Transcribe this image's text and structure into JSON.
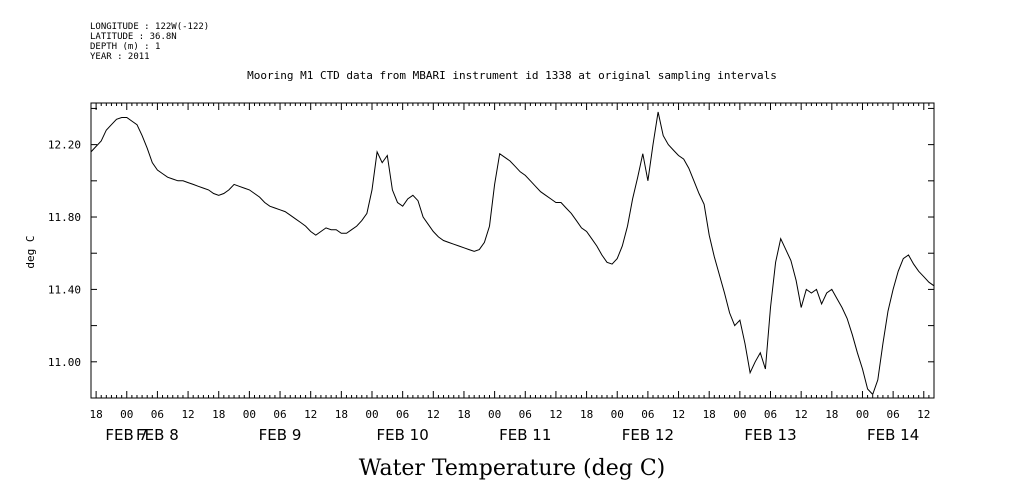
{
  "meta": {
    "longitude": "LONGITUDE : 122W(-122)",
    "latitude": "LATITUDE : 36.8N",
    "depth": "DEPTH (m) : 1",
    "year": "YEAR : 2011"
  },
  "chart_data": {
    "type": "line",
    "title": "Mooring M1 CTD data from MBARI instrument id 1338 at original sampling intervals",
    "xlabel": "Water Temperature (deg C)",
    "ylabel": "deg C",
    "ylim": [
      10.8,
      12.43
    ],
    "yticks": [
      11.0,
      11.4,
      11.8,
      12.2
    ],
    "ytick_labels": [
      "11.00",
      "11.40",
      "11.80",
      "12.20"
    ],
    "xlim_hours": [
      -7,
      158
    ],
    "hour_ticks": [
      {
        "h": -6,
        "label": "18"
      },
      {
        "h": 0,
        "label": "00"
      },
      {
        "h": 6,
        "label": "06"
      },
      {
        "h": 12,
        "label": "12"
      },
      {
        "h": 18,
        "label": "18"
      },
      {
        "h": 24,
        "label": "00"
      },
      {
        "h": 30,
        "label": "06"
      },
      {
        "h": 36,
        "label": "12"
      },
      {
        "h": 42,
        "label": "18"
      },
      {
        "h": 48,
        "label": "00"
      },
      {
        "h": 54,
        "label": "06"
      },
      {
        "h": 60,
        "label": "12"
      },
      {
        "h": 66,
        "label": "18"
      },
      {
        "h": 72,
        "label": "00"
      },
      {
        "h": 78,
        "label": "06"
      },
      {
        "h": 84,
        "label": "12"
      },
      {
        "h": 90,
        "label": "18"
      },
      {
        "h": 96,
        "label": "00"
      },
      {
        "h": 102,
        "label": "06"
      },
      {
        "h": 108,
        "label": "12"
      },
      {
        "h": 114,
        "label": "18"
      },
      {
        "h": 120,
        "label": "00"
      },
      {
        "h": 126,
        "label": "06"
      },
      {
        "h": 132,
        "label": "12"
      },
      {
        "h": 138,
        "label": "18"
      },
      {
        "h": 144,
        "label": "00"
      },
      {
        "h": 150,
        "label": "06"
      },
      {
        "h": 156,
        "label": "12"
      }
    ],
    "date_labels": [
      {
        "h": 0,
        "label": "FEB  7"
      },
      {
        "h": 6,
        "label": "FEB  8"
      },
      {
        "h": 30,
        "label": "FEB  9"
      },
      {
        "h": 54,
        "label": "FEB 10"
      },
      {
        "h": 78,
        "label": "FEB 11"
      },
      {
        "h": 102,
        "label": "FEB 12"
      },
      {
        "h": 126,
        "label": "FEB 13"
      },
      {
        "h": 150,
        "label": "FEB 14"
      }
    ],
    "series": [
      {
        "color": "#000000",
        "points": [
          [
            -7,
            12.16
          ],
          [
            -6,
            12.19
          ],
          [
            -5,
            12.22
          ],
          [
            -4,
            12.28
          ],
          [
            -3,
            12.31
          ],
          [
            -2,
            12.34
          ],
          [
            -1,
            12.35
          ],
          [
            0,
            12.35
          ],
          [
            1,
            12.33
          ],
          [
            2,
            12.31
          ],
          [
            3,
            12.25
          ],
          [
            4,
            12.18
          ],
          [
            5,
            12.1
          ],
          [
            6,
            12.06
          ],
          [
            7,
            12.04
          ],
          [
            8,
            12.02
          ],
          [
            9,
            12.01
          ],
          [
            10,
            12.0
          ],
          [
            11,
            12.0
          ],
          [
            12,
            11.99
          ],
          [
            13,
            11.98
          ],
          [
            14,
            11.97
          ],
          [
            15,
            11.96
          ],
          [
            16,
            11.95
          ],
          [
            17,
            11.93
          ],
          [
            18,
            11.92
          ],
          [
            19,
            11.93
          ],
          [
            20,
            11.95
          ],
          [
            21,
            11.98
          ],
          [
            22,
            11.97
          ],
          [
            23,
            11.96
          ],
          [
            24,
            11.95
          ],
          [
            25,
            11.93
          ],
          [
            26,
            11.91
          ],
          [
            27,
            11.88
          ],
          [
            28,
            11.86
          ],
          [
            29,
            11.85
          ],
          [
            30,
            11.84
          ],
          [
            31,
            11.83
          ],
          [
            32,
            11.81
          ],
          [
            33,
            11.79
          ],
          [
            34,
            11.77
          ],
          [
            35,
            11.75
          ],
          [
            36,
            11.72
          ],
          [
            37,
            11.7
          ],
          [
            38,
            11.72
          ],
          [
            39,
            11.74
          ],
          [
            40,
            11.73
          ],
          [
            41,
            11.73
          ],
          [
            42,
            11.71
          ],
          [
            43,
            11.71
          ],
          [
            44,
            11.73
          ],
          [
            45,
            11.75
          ],
          [
            46,
            11.78
          ],
          [
            47,
            11.82
          ],
          [
            48,
            11.95
          ],
          [
            49,
            12.16
          ],
          [
            50,
            12.1
          ],
          [
            51,
            12.14
          ],
          [
            52,
            11.95
          ],
          [
            53,
            11.88
          ],
          [
            54,
            11.86
          ],
          [
            55,
            11.9
          ],
          [
            56,
            11.92
          ],
          [
            57,
            11.89
          ],
          [
            58,
            11.8
          ],
          [
            59,
            11.76
          ],
          [
            60,
            11.72
          ],
          [
            61,
            11.69
          ],
          [
            62,
            11.67
          ],
          [
            63,
            11.66
          ],
          [
            64,
            11.65
          ],
          [
            65,
            11.64
          ],
          [
            66,
            11.63
          ],
          [
            67,
            11.62
          ],
          [
            68,
            11.61
          ],
          [
            69,
            11.62
          ],
          [
            70,
            11.66
          ],
          [
            71,
            11.75
          ],
          [
            72,
            11.98
          ],
          [
            73,
            12.15
          ],
          [
            74,
            12.13
          ],
          [
            75,
            12.11
          ],
          [
            76,
            12.08
          ],
          [
            77,
            12.05
          ],
          [
            78,
            12.03
          ],
          [
            79,
            12.0
          ],
          [
            80,
            11.97
          ],
          [
            81,
            11.94
          ],
          [
            82,
            11.92
          ],
          [
            83,
            11.9
          ],
          [
            84,
            11.88
          ],
          [
            85,
            11.88
          ],
          [
            86,
            11.85
          ],
          [
            87,
            11.82
          ],
          [
            88,
            11.78
          ],
          [
            89,
            11.74
          ],
          [
            90,
            11.72
          ],
          [
            91,
            11.68
          ],
          [
            92,
            11.64
          ],
          [
            93,
            11.59
          ],
          [
            94,
            11.55
          ],
          [
            95,
            11.54
          ],
          [
            96,
            11.57
          ],
          [
            97,
            11.64
          ],
          [
            98,
            11.75
          ],
          [
            99,
            11.9
          ],
          [
            100,
            12.02
          ],
          [
            101,
            12.15
          ],
          [
            102,
            12.0
          ],
          [
            103,
            12.2
          ],
          [
            104,
            12.38
          ],
          [
            105,
            12.25
          ],
          [
            106,
            12.2
          ],
          [
            107,
            12.17
          ],
          [
            108,
            12.14
          ],
          [
            109,
            12.12
          ],
          [
            110,
            12.07
          ],
          [
            111,
            12.0
          ],
          [
            112,
            11.93
          ],
          [
            113,
            11.87
          ],
          [
            114,
            11.7
          ],
          [
            115,
            11.58
          ],
          [
            116,
            11.48
          ],
          [
            117,
            11.38
          ],
          [
            118,
            11.27
          ],
          [
            119,
            11.2
          ],
          [
            120,
            11.23
          ],
          [
            121,
            11.1
          ],
          [
            122,
            10.94
          ],
          [
            123,
            11.0
          ],
          [
            124,
            11.05
          ],
          [
            125,
            10.96
          ],
          [
            126,
            11.3
          ],
          [
            127,
            11.55
          ],
          [
            128,
            11.68
          ],
          [
            129,
            11.62
          ],
          [
            130,
            11.56
          ],
          [
            131,
            11.45
          ],
          [
            132,
            11.3
          ],
          [
            133,
            11.4
          ],
          [
            134,
            11.38
          ],
          [
            135,
            11.4
          ],
          [
            136,
            11.32
          ],
          [
            137,
            11.38
          ],
          [
            138,
            11.4
          ],
          [
            139,
            11.35
          ],
          [
            140,
            11.3
          ],
          [
            141,
            11.24
          ],
          [
            142,
            11.15
          ],
          [
            143,
            11.05
          ],
          [
            144,
            10.96
          ],
          [
            145,
            10.85
          ],
          [
            146,
            10.82
          ],
          [
            147,
            10.9
          ],
          [
            148,
            11.1
          ],
          [
            149,
            11.28
          ],
          [
            150,
            11.4
          ],
          [
            151,
            11.5
          ],
          [
            152,
            11.57
          ],
          [
            153,
            11.59
          ],
          [
            154,
            11.54
          ],
          [
            155,
            11.5
          ],
          [
            156,
            11.47
          ],
          [
            157,
            11.44
          ],
          [
            158,
            11.42
          ]
        ]
      }
    ]
  }
}
